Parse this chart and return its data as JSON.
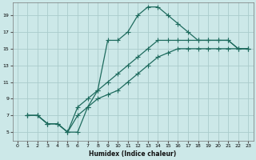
{
  "title": "",
  "xlabel": "Humidex (Indice chaleur)",
  "bg_color": "#cce8e8",
  "line_color": "#1e6b5e",
  "grid_color": "#aacccc",
  "xlim": [
    -0.5,
    23.5
  ],
  "ylim": [
    4,
    20.5
  ],
  "xticks": [
    0,
    1,
    2,
    3,
    4,
    5,
    6,
    7,
    8,
    9,
    10,
    11,
    12,
    13,
    14,
    15,
    16,
    17,
    18,
    19,
    20,
    21,
    22,
    23
  ],
  "yticks": [
    5,
    7,
    9,
    11,
    13,
    15,
    17,
    19
  ],
  "line1_x": [
    1,
    2,
    3,
    4,
    5,
    6,
    7,
    8,
    9,
    10,
    11,
    12,
    13,
    14,
    15,
    16,
    17,
    18,
    19,
    20,
    21,
    22,
    23
  ],
  "line1_y": [
    7,
    7,
    6,
    6,
    5,
    5,
    8,
    10,
    16,
    16,
    17,
    19,
    20,
    20,
    19,
    18,
    17,
    16,
    16,
    16,
    16,
    15,
    15
  ],
  "line2_x": [
    1,
    2,
    3,
    4,
    5,
    6,
    7,
    8,
    9,
    10,
    11,
    12,
    13,
    14,
    15,
    16,
    17,
    18,
    19,
    20,
    21,
    22,
    23
  ],
  "line2_y": [
    7,
    7,
    6,
    6,
    5,
    8,
    9,
    10,
    11,
    12,
    13,
    14,
    15,
    16,
    16,
    16,
    16,
    16,
    16,
    16,
    16,
    15,
    15
  ],
  "line3_x": [
    1,
    2,
    3,
    4,
    5,
    6,
    7,
    8,
    9,
    10,
    11,
    12,
    13,
    14,
    15,
    16,
    17,
    18,
    19,
    20,
    21,
    22,
    23
  ],
  "line3_y": [
    7,
    7,
    6,
    6,
    5,
    7,
    8,
    9,
    9.5,
    10,
    11,
    12,
    13,
    14,
    14.5,
    15,
    15,
    15,
    15,
    15,
    15,
    15,
    15
  ]
}
